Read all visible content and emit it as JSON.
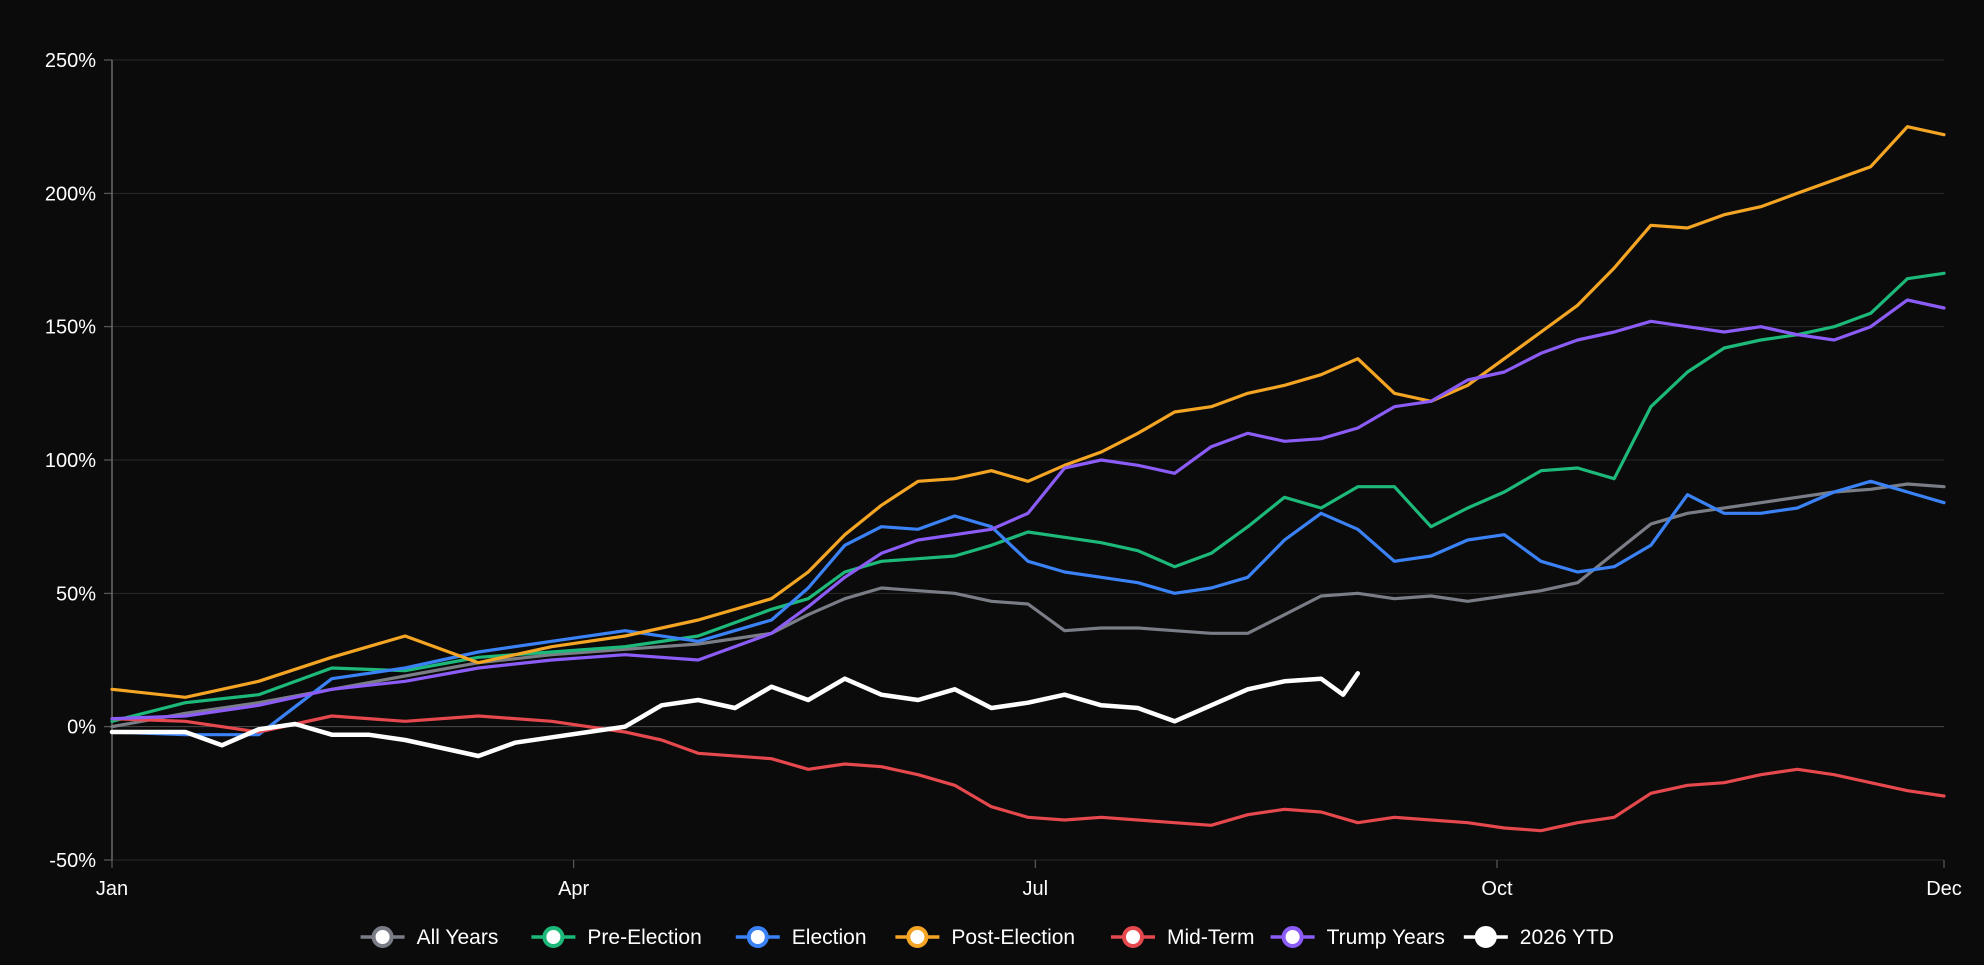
{
  "chart_data": {
    "type": "line",
    "title": "",
    "xlabel": "",
    "ylabel": "",
    "x_unit": "trading-day index (0 = Jan, 250 = Dec)",
    "x_range": [
      0,
      250
    ],
    "ylim": [
      -50,
      250
    ],
    "y_ticks": [
      250,
      200,
      150,
      100,
      50,
      0,
      -50
    ],
    "y_tick_labels": [
      "250%",
      "200%",
      "150%",
      "100%",
      "50%",
      "0%",
      "-50%"
    ],
    "x_ticks": [
      {
        "x": 0,
        "label": "Jan"
      },
      {
        "x": 63,
        "label": "Apr"
      },
      {
        "x": 126,
        "label": "Jul"
      },
      {
        "x": 189,
        "label": "Oct"
      },
      {
        "x": 250,
        "label": "Dec"
      }
    ],
    "grid": true,
    "legend_position": "bottom-center",
    "background": "#0b0b0b",
    "series": [
      {
        "name": "All Years",
        "color": "#7a7d86",
        "points": [
          [
            0,
            0
          ],
          [
            10,
            5
          ],
          [
            20,
            9
          ],
          [
            30,
            14
          ],
          [
            40,
            19
          ],
          [
            50,
            24
          ],
          [
            60,
            27
          ],
          [
            70,
            29
          ],
          [
            80,
            31
          ],
          [
            90,
            35
          ],
          [
            95,
            42
          ],
          [
            100,
            48
          ],
          [
            105,
            52
          ],
          [
            110,
            51
          ],
          [
            115,
            50
          ],
          [
            120,
            47
          ],
          [
            125,
            46
          ],
          [
            130,
            36
          ],
          [
            135,
            37
          ],
          [
            140,
            37
          ],
          [
            145,
            36
          ],
          [
            150,
            35
          ],
          [
            155,
            35
          ],
          [
            160,
            42
          ],
          [
            165,
            49
          ],
          [
            170,
            50
          ],
          [
            175,
            48
          ],
          [
            180,
            49
          ],
          [
            185,
            47
          ],
          [
            190,
            49
          ],
          [
            195,
            51
          ],
          [
            200,
            54
          ],
          [
            205,
            65
          ],
          [
            210,
            76
          ],
          [
            215,
            80
          ],
          [
            220,
            82
          ],
          [
            225,
            84
          ],
          [
            230,
            86
          ],
          [
            235,
            88
          ],
          [
            240,
            89
          ],
          [
            245,
            91
          ],
          [
            250,
            90
          ]
        ]
      },
      {
        "name": "Pre-Election",
        "color": "#1db97a",
        "points": [
          [
            0,
            2
          ],
          [
            10,
            9
          ],
          [
            20,
            12
          ],
          [
            30,
            22
          ],
          [
            40,
            21
          ],
          [
            50,
            26
          ],
          [
            60,
            28
          ],
          [
            70,
            30
          ],
          [
            80,
            34
          ],
          [
            90,
            44
          ],
          [
            95,
            48
          ],
          [
            100,
            58
          ],
          [
            105,
            62
          ],
          [
            110,
            63
          ],
          [
            115,
            64
          ],
          [
            120,
            68
          ],
          [
            125,
            73
          ],
          [
            130,
            71
          ],
          [
            135,
            69
          ],
          [
            140,
            66
          ],
          [
            145,
            60
          ],
          [
            150,
            65
          ],
          [
            155,
            75
          ],
          [
            160,
            86
          ],
          [
            165,
            82
          ],
          [
            170,
            90
          ],
          [
            175,
            90
          ],
          [
            180,
            75
          ],
          [
            185,
            82
          ],
          [
            190,
            88
          ],
          [
            195,
            96
          ],
          [
            200,
            97
          ],
          [
            205,
            93
          ],
          [
            210,
            120
          ],
          [
            215,
            133
          ],
          [
            220,
            142
          ],
          [
            225,
            145
          ],
          [
            230,
            147
          ],
          [
            235,
            150
          ],
          [
            240,
            155
          ],
          [
            245,
            168
          ],
          [
            250,
            170
          ]
        ]
      },
      {
        "name": "Election",
        "color": "#3a82f6",
        "points": [
          [
            0,
            -2
          ],
          [
            10,
            -3
          ],
          [
            20,
            -3
          ],
          [
            30,
            18
          ],
          [
            40,
            22
          ],
          [
            50,
            28
          ],
          [
            60,
            32
          ],
          [
            70,
            36
          ],
          [
            80,
            32
          ],
          [
            90,
            40
          ],
          [
            95,
            52
          ],
          [
            100,
            68
          ],
          [
            105,
            75
          ],
          [
            110,
            74
          ],
          [
            115,
            79
          ],
          [
            120,
            75
          ],
          [
            125,
            62
          ],
          [
            130,
            58
          ],
          [
            135,
            56
          ],
          [
            140,
            54
          ],
          [
            145,
            50
          ],
          [
            150,
            52
          ],
          [
            155,
            56
          ],
          [
            160,
            70
          ],
          [
            165,
            80
          ],
          [
            170,
            74
          ],
          [
            175,
            62
          ],
          [
            180,
            64
          ],
          [
            185,
            70
          ],
          [
            190,
            72
          ],
          [
            195,
            62
          ],
          [
            200,
            58
          ],
          [
            205,
            60
          ],
          [
            210,
            68
          ],
          [
            215,
            87
          ],
          [
            220,
            80
          ],
          [
            225,
            80
          ],
          [
            230,
            82
          ],
          [
            235,
            88
          ],
          [
            240,
            92
          ],
          [
            245,
            88
          ],
          [
            250,
            84
          ]
        ]
      },
      {
        "name": "Post-Election",
        "color": "#f5a524",
        "points": [
          [
            0,
            14
          ],
          [
            10,
            11
          ],
          [
            20,
            17
          ],
          [
            30,
            26
          ],
          [
            40,
            34
          ],
          [
            50,
            24
          ],
          [
            60,
            30
          ],
          [
            70,
            34
          ],
          [
            80,
            40
          ],
          [
            90,
            48
          ],
          [
            95,
            58
          ],
          [
            100,
            72
          ],
          [
            105,
            83
          ],
          [
            110,
            92
          ],
          [
            115,
            93
          ],
          [
            120,
            96
          ],
          [
            125,
            92
          ],
          [
            130,
            98
          ],
          [
            135,
            103
          ],
          [
            140,
            110
          ],
          [
            145,
            118
          ],
          [
            150,
            120
          ],
          [
            155,
            125
          ],
          [
            160,
            128
          ],
          [
            165,
            132
          ],
          [
            170,
            138
          ],
          [
            175,
            125
          ],
          [
            180,
            122
          ],
          [
            185,
            128
          ],
          [
            190,
            138
          ],
          [
            195,
            148
          ],
          [
            200,
            158
          ],
          [
            205,
            172
          ],
          [
            210,
            188
          ],
          [
            215,
            187
          ],
          [
            220,
            192
          ],
          [
            225,
            195
          ],
          [
            230,
            200
          ],
          [
            235,
            205
          ],
          [
            240,
            210
          ],
          [
            245,
            225
          ],
          [
            250,
            222
          ]
        ]
      },
      {
        "name": "Mid-Term",
        "color": "#e5484d",
        "points": [
          [
            0,
            3
          ],
          [
            10,
            2
          ],
          [
            20,
            -2
          ],
          [
            30,
            4
          ],
          [
            40,
            2
          ],
          [
            50,
            4
          ],
          [
            60,
            2
          ],
          [
            70,
            -2
          ],
          [
            75,
            -5
          ],
          [
            80,
            -10
          ],
          [
            90,
            -12
          ],
          [
            95,
            -16
          ],
          [
            100,
            -14
          ],
          [
            105,
            -15
          ],
          [
            110,
            -18
          ],
          [
            115,
            -22
          ],
          [
            120,
            -30
          ],
          [
            125,
            -34
          ],
          [
            130,
            -35
          ],
          [
            135,
            -34
          ],
          [
            140,
            -35
          ],
          [
            145,
            -36
          ],
          [
            150,
            -37
          ],
          [
            155,
            -33
          ],
          [
            160,
            -31
          ],
          [
            165,
            -32
          ],
          [
            170,
            -36
          ],
          [
            175,
            -34
          ],
          [
            180,
            -35
          ],
          [
            185,
            -36
          ],
          [
            190,
            -38
          ],
          [
            195,
            -39
          ],
          [
            200,
            -36
          ],
          [
            205,
            -34
          ],
          [
            210,
            -25
          ],
          [
            215,
            -22
          ],
          [
            220,
            -21
          ],
          [
            225,
            -18
          ],
          [
            230,
            -16
          ],
          [
            235,
            -18
          ],
          [
            240,
            -21
          ],
          [
            245,
            -24
          ],
          [
            250,
            -26
          ]
        ]
      },
      {
        "name": "Trump Years",
        "color": "#8b5cf6",
        "points": [
          [
            0,
            3
          ],
          [
            10,
            4
          ],
          [
            20,
            8
          ],
          [
            30,
            14
          ],
          [
            40,
            17
          ],
          [
            50,
            22
          ],
          [
            60,
            25
          ],
          [
            70,
            27
          ],
          [
            80,
            25
          ],
          [
            90,
            35
          ],
          [
            95,
            45
          ],
          [
            100,
            56
          ],
          [
            105,
            65
          ],
          [
            110,
            70
          ],
          [
            115,
            72
          ],
          [
            120,
            74
          ],
          [
            125,
            80
          ],
          [
            130,
            97
          ],
          [
            135,
            100
          ],
          [
            140,
            98
          ],
          [
            145,
            95
          ],
          [
            150,
            105
          ],
          [
            155,
            110
          ],
          [
            160,
            107
          ],
          [
            165,
            108
          ],
          [
            170,
            112
          ],
          [
            175,
            120
          ],
          [
            180,
            122
          ],
          [
            185,
            130
          ],
          [
            190,
            133
          ],
          [
            195,
            140
          ],
          [
            200,
            145
          ],
          [
            205,
            148
          ],
          [
            210,
            152
          ],
          [
            215,
            150
          ],
          [
            220,
            148
          ],
          [
            225,
            150
          ],
          [
            230,
            147
          ],
          [
            235,
            145
          ],
          [
            240,
            150
          ],
          [
            245,
            160
          ],
          [
            250,
            157
          ]
        ]
      },
      {
        "name": "2026 YTD",
        "color": "#ffffff",
        "points": [
          [
            0,
            -2
          ],
          [
            10,
            -2
          ],
          [
            15,
            -7
          ],
          [
            20,
            -1
          ],
          [
            25,
            1
          ],
          [
            30,
            -3
          ],
          [
            35,
            -3
          ],
          [
            40,
            -5
          ],
          [
            45,
            -8
          ],
          [
            50,
            -11
          ],
          [
            55,
            -6
          ],
          [
            60,
            -4
          ],
          [
            65,
            -2
          ],
          [
            70,
            0
          ],
          [
            75,
            8
          ],
          [
            80,
            10
          ],
          [
            85,
            7
          ],
          [
            90,
            15
          ],
          [
            95,
            10
          ],
          [
            100,
            18
          ],
          [
            105,
            12
          ],
          [
            110,
            10
          ],
          [
            115,
            14
          ],
          [
            120,
            7
          ],
          [
            125,
            9
          ],
          [
            130,
            12
          ],
          [
            135,
            8
          ],
          [
            140,
            7
          ],
          [
            145,
            2
          ],
          [
            150,
            8
          ],
          [
            155,
            14
          ],
          [
            160,
            17
          ],
          [
            165,
            18
          ],
          [
            168,
            12
          ],
          [
            170,
            20
          ]
        ]
      }
    ]
  }
}
